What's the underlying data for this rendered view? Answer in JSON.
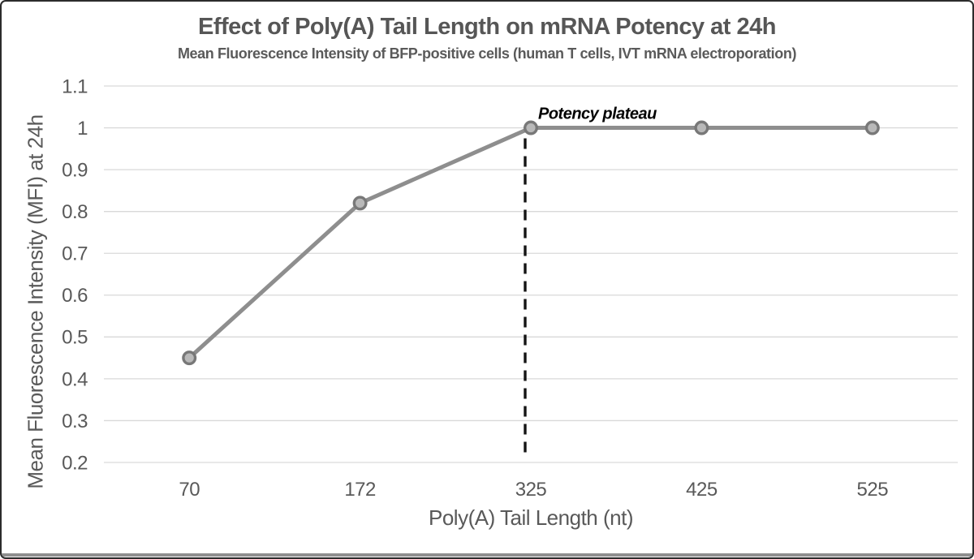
{
  "chart_data": {
    "type": "line",
    "title": "Effect of Poly(A) Tail Length on mRNA Potency at 24h",
    "subtitle": "Mean Fluorescence Intensity of BFP-positive cells (human T cells, IVT mRNA electroporation)",
    "xlabel": "Poly(A) Tail Length (nt)",
    "ylabel": "Mean Fluorescence Intensity (MFI) at 24h",
    "categories": [
      70,
      172,
      325,
      425,
      525
    ],
    "values": [
      0.45,
      0.82,
      1.0,
      1.0,
      1.0
    ],
    "series_name": "MFI at 24h",
    "ylim": [
      0.2,
      1.1
    ],
    "ytick_labels": [
      "1.1",
      "1",
      "0.9",
      "0.8",
      "0.7",
      "0.6",
      "0.5",
      "0.4",
      "0.3",
      "0.2"
    ],
    "xaxis_type": "category",
    "grid": "horizontal",
    "legend": "none",
    "annotation": {
      "text": "Potency plateau",
      "at_category": 325,
      "at_value": 1.0,
      "style": "bold-italic"
    },
    "reference_line": {
      "orientation": "vertical",
      "at_category": 325,
      "from_value": 0.2,
      "to_value": 1.0,
      "style": "dashed"
    },
    "colors": {
      "series_line": "#8e8e8e",
      "marker_fill": "#b9b9b9",
      "marker_stroke": "#787878",
      "gridline": "#d9d9d9",
      "reference_line": "#141414",
      "title_text": "#565656",
      "subtitle_text": "#5a5a5a",
      "tick_text": "#595959",
      "axis_title_text": "#595959",
      "annotation_text": "#000000",
      "frame_border": "#2b2b2b",
      "bottom_bar": "#8f8f8f"
    }
  }
}
